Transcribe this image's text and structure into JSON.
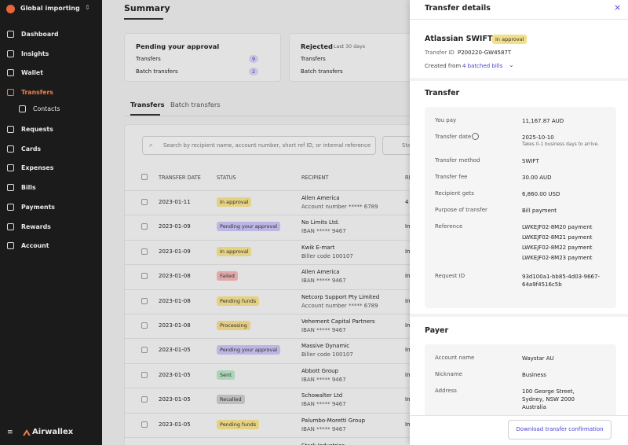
{
  "sidebar": {
    "org": "Global importing",
    "nav": [
      "Dashboard",
      "Insights",
      "Wallet",
      "Transfers",
      "Contacts",
      "Requests",
      "Cards",
      "Expenses",
      "Bills",
      "Payments",
      "Rewards",
      "Account"
    ],
    "brand": "Airwallex"
  },
  "main": {
    "title": "Summary",
    "cards": [
      {
        "title": "Pending your approval",
        "rows": [
          {
            "label": "Transfers",
            "count": 9
          },
          {
            "label": "Batch transfers",
            "count": 2
          }
        ]
      },
      {
        "title": "Rejected",
        "note": "Last 30 days",
        "rows": [
          {
            "label": "Transfers"
          },
          {
            "label": "Batch transfers"
          }
        ]
      }
    ],
    "tabs": [
      "Transfers",
      "Batch transfers"
    ],
    "search": "Search by recipient name, account number, short ref ID, or internal reference",
    "filter": "Sta",
    "table": {
      "headers": [
        "TRANSFER DATE",
        "STATUS",
        "RECIPIENT",
        "RE"
      ],
      "rows": [
        {
          "date": "2023-01-11",
          "status": {
            "label": "In approval",
            "color": "#f3df8a"
          },
          "recipient": "Allen America",
          "detail": "Account number ***** 6789",
          "ref": "4"
        },
        {
          "date": "2023-01-09",
          "status": {
            "label": "Pending your approval",
            "color": "#c8c2f3"
          },
          "recipient": "No Limits Ltd.",
          "detail": "IBAN ***** 9467",
          "ref": "In"
        },
        {
          "date": "2023-01-09",
          "status": {
            "label": "In approval",
            "color": "#f3df8a"
          },
          "recipient": "Kwik E-mart",
          "detail": "Biller code 100107",
          "ref": "In"
        },
        {
          "date": "2023-01-08",
          "status": {
            "label": "Failed",
            "color": "#f0b3b3"
          },
          "recipient": "Allen America",
          "detail": "IBAN ***** 9467",
          "ref": "In"
        },
        {
          "date": "2023-01-08",
          "status": {
            "label": "Pending funds",
            "color": "#f3df8a"
          },
          "recipient": "Netcorp Support Pty Limited",
          "detail": "Account number ***** 6789",
          "ref": "In"
        },
        {
          "date": "2023-01-08",
          "status": {
            "label": "Processing",
            "color": "#f3d98a"
          },
          "recipient": "Vehement Capital Partners",
          "detail": "IBAN ***** 9467",
          "ref": "In"
        },
        {
          "date": "2023-01-05",
          "status": {
            "label": "Pending your approval",
            "color": "#c8c2f3"
          },
          "recipient": "Massive Dynamic",
          "detail": "Biller code 100107",
          "ref": "In"
        },
        {
          "date": "2023-01-05",
          "status": {
            "label": "Sent",
            "color": "#b5e3c2"
          },
          "recipient": "Abbott Group",
          "detail": "IBAN ***** 9467",
          "ref": "In"
        },
        {
          "date": "2023-01-05",
          "status": {
            "label": "Recalled",
            "color": "#c9c9c9"
          },
          "recipient": "Schowalter Ltd",
          "detail": "IBAN ***** 9467",
          "ref": "In"
        },
        {
          "date": "2023-01-05",
          "status": {
            "label": "Pending funds",
            "color": "#f3df8a"
          },
          "recipient": "Palumbo-Moretti Group",
          "detail": "IBAN ***** 9467",
          "ref": "In"
        },
        {
          "recipient": "Stark Industries"
        }
      ]
    }
  },
  "panel": {
    "title": "Transfer details",
    "close": "×",
    "name": "Atlassian SWIFT",
    "badge": "In approval",
    "id_label": "Transfer ID",
    "id": "P200220-GW4587T",
    "created_label": "Created from",
    "created_link": "4 batched bills",
    "sections": [
      {
        "title": "Transfer",
        "rows": [
          {
            "label": "You pay",
            "value": [
              "11,167.87 AUD"
            ]
          },
          {
            "label": "Transfer date",
            "value": [
              "2025-10-10"
            ],
            "note": "Takes 0-1 business days to arrive."
          },
          {
            "label": "Transfer method",
            "value": [
              "SWIFT"
            ]
          },
          {
            "label": "Transfer fee",
            "value": [
              "30.00 AUD"
            ]
          },
          {
            "label": "Recipient gets",
            "value": [
              "6,860.00 USD"
            ]
          },
          {
            "label": "Purpose of transfer",
            "value": [
              "Bill payment"
            ]
          },
          {
            "label": "Reference",
            "value": [
              "LWKEJF02-8M20 payment",
              "LWKEJF02-8M21 payment",
              "LWKEJF02-8M22 payment",
              "LWKEJF02-8M23 payment"
            ]
          },
          {
            "label": "Request ID",
            "value": [
              "93d100a1-bb85-4d03-9667-64a9f4516c5b"
            ]
          }
        ]
      },
      {
        "title": "Payer",
        "rows": [
          {
            "label": "Account name",
            "value": [
              "Waystar AU"
            ]
          },
          {
            "label": "Nickname",
            "value": [
              "Business"
            ]
          },
          {
            "label": "Address",
            "value": [
              "100 George Street,",
              "Sydney, NSW 2000",
              "Australia"
            ]
          }
        ]
      }
    ],
    "button": "Download transfer confirmation"
  }
}
